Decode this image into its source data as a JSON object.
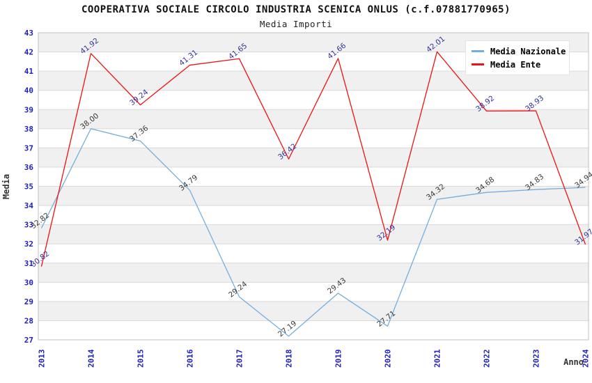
{
  "chart_data": {
    "type": "line",
    "title": "COOPERATIVA SOCIALE CIRCOLO INDUSTRIA SCENICA ONLUS (c.f.07881770965)",
    "subtitle": "Media Importi",
    "xlabel": "Anno",
    "ylabel": "Media",
    "ylim": [
      27,
      43
    ],
    "ytick_step": 1,
    "grid": "horizontal-bands-alternating",
    "legend_position": "top-right",
    "categories": [
      "2013",
      "2014",
      "2015",
      "2016",
      "2017",
      "2018",
      "2019",
      "2020",
      "2021",
      "2022",
      "2023",
      "2024"
    ],
    "series": [
      {
        "name": "Media Nazionale",
        "color": "#74aede",
        "label_color": "#3a3a3a",
        "values": [
          32.82,
          38.0,
          37.36,
          34.79,
          29.24,
          27.19,
          29.43,
          27.71,
          34.32,
          34.68,
          34.83,
          34.94
        ]
      },
      {
        "name": "Media Ente",
        "color": "#ee1111",
        "label_color": "#333399",
        "values": [
          30.82,
          41.92,
          39.24,
          41.31,
          41.65,
          36.42,
          41.66,
          32.19,
          42.01,
          38.92,
          38.93,
          31.97
        ]
      }
    ],
    "colors": {
      "background": "#ffffff",
      "band": "#f0f0f0",
      "grid": "#d9d9d9",
      "plot_border": "#c0c0c0",
      "tick_label": "#2020c0",
      "axis_title": "#333333"
    }
  }
}
